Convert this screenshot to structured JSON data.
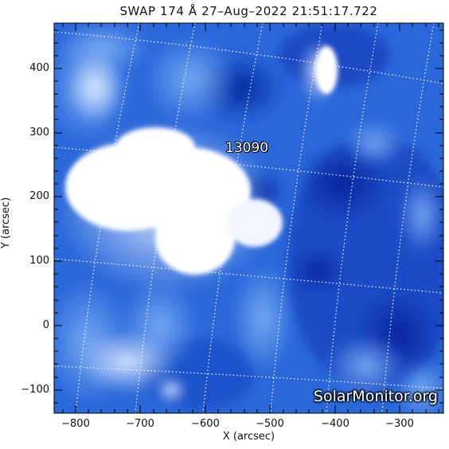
{
  "title": "SWAP 174 Å 27–Aug–2022 21:51:17.722",
  "region_label": "13090",
  "watermark": "SolarMonitor.org",
  "axes": {
    "xlabel": "X (arcsec)",
    "ylabel": "Y (arcsec)",
    "xlim": [
      -830,
      -230
    ],
    "ylim": [
      -135,
      465
    ],
    "xticks": [
      "−800",
      "−700",
      "−600",
      "−500",
      "−400",
      "−300"
    ],
    "yticks": [
      "400",
      "300",
      "200",
      "100",
      "0",
      "−100"
    ]
  },
  "colors": {
    "background_blue": "#1f5fd6",
    "dark_blue": "#0a2a9e",
    "bright": "#ffffff",
    "grid": "#ffffff"
  }
}
